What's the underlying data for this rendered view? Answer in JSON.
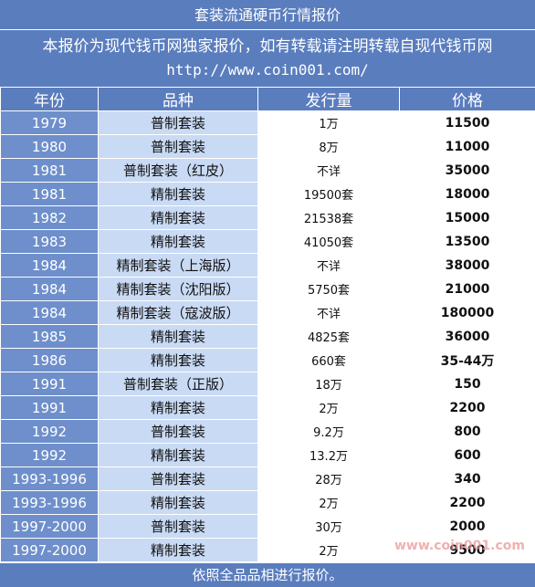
{
  "title": "套装流通硬币行情报价",
  "notice": "本报价为现代钱币网独家报价，如有转载请注明转载自现代钱币网",
  "url": "http://www.coin001.com/",
  "headers": [
    "年份",
    "品种",
    "发行量",
    "价格"
  ],
  "rows": [
    {
      "year": "1979",
      "variety": "普制套装",
      "issue": "1万",
      "price": "11500"
    },
    {
      "year": "1980",
      "variety": "普制套装",
      "issue": "8万",
      "price": "11000"
    },
    {
      "year": "1981",
      "variety": "普制套装（红皮）",
      "issue": "不详",
      "price": "35000"
    },
    {
      "year": "1981",
      "variety": "精制套装",
      "issue": "19500套",
      "price": "18000"
    },
    {
      "year": "1982",
      "variety": "精制套装",
      "issue": "21538套",
      "price": "15000"
    },
    {
      "year": "1983",
      "variety": "精制套装",
      "issue": "41050套",
      "price": "13500"
    },
    {
      "year": "1984",
      "variety": "精制套装（上海版）",
      "issue": "不详",
      "price": "38000"
    },
    {
      "year": "1984",
      "variety": "精制套装（沈阳版）",
      "issue": "5750套",
      "price": "21000"
    },
    {
      "year": "1984",
      "variety": "精制套装（寇波版）",
      "issue": "不详",
      "price": "180000"
    },
    {
      "year": "1985",
      "variety": "精制套装",
      "issue": "4825套",
      "price": "36000"
    },
    {
      "year": "1986",
      "variety": "精制套装",
      "issue": "660套",
      "price": "35-44万"
    },
    {
      "year": "1991",
      "variety": "普制套装（正版）",
      "issue": "18万",
      "price": "150"
    },
    {
      "year": "1991",
      "variety": "精制套装",
      "issue": "2万",
      "price": "2200"
    },
    {
      "year": "1992",
      "variety": "普制套装",
      "issue": "9.2万",
      "price": "800"
    },
    {
      "year": "1992",
      "variety": "精制套装",
      "issue": "13.2万",
      "price": "600"
    },
    {
      "year": "1993-1996",
      "variety": "普制套装",
      "issue": "28万",
      "price": "340"
    },
    {
      "year": "1993-1996",
      "variety": "精制套装",
      "issue": "2万",
      "price": "2200"
    },
    {
      "year": "1997-2000",
      "variety": "普制套装",
      "issue": "30万",
      "price": "2000"
    },
    {
      "year": "1997-2000",
      "variety": "精制套装",
      "issue": "2万",
      "price": "9500"
    }
  ],
  "footer": "依照全品品相进行报价。",
  "watermark": "www.coin001.com"
}
